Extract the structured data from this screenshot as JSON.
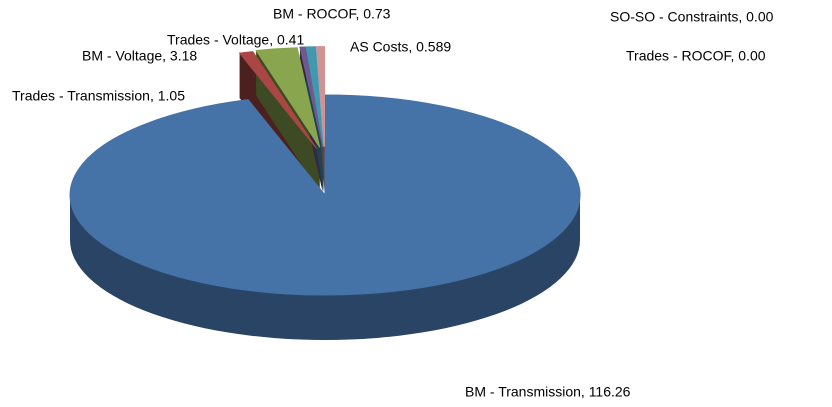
{
  "chart_data": {
    "type": "pie",
    "three_d": true,
    "values": [
      116.26,
      1.05,
      3.18,
      0.41,
      0.73,
      0,
      0,
      0.589
    ],
    "value_labels": [
      "BM - Transmission, 116.26",
      "Trades - Transmission, 1.05",
      "BM - Voltage, 3.18",
      "Trades - Voltage, 0.41",
      "BM - ROCOF, 0.73",
      "SO-SO - Constraints, 0.00",
      "Trades - ROCOF, 0.00",
      "AS Costs, 0.589"
    ],
    "colors": [
      "#4572a7",
      "#aa4643",
      "#89a54e",
      "#71588f",
      "#4198af",
      "#db843d",
      "#93a9cf",
      "#d19392"
    ]
  }
}
